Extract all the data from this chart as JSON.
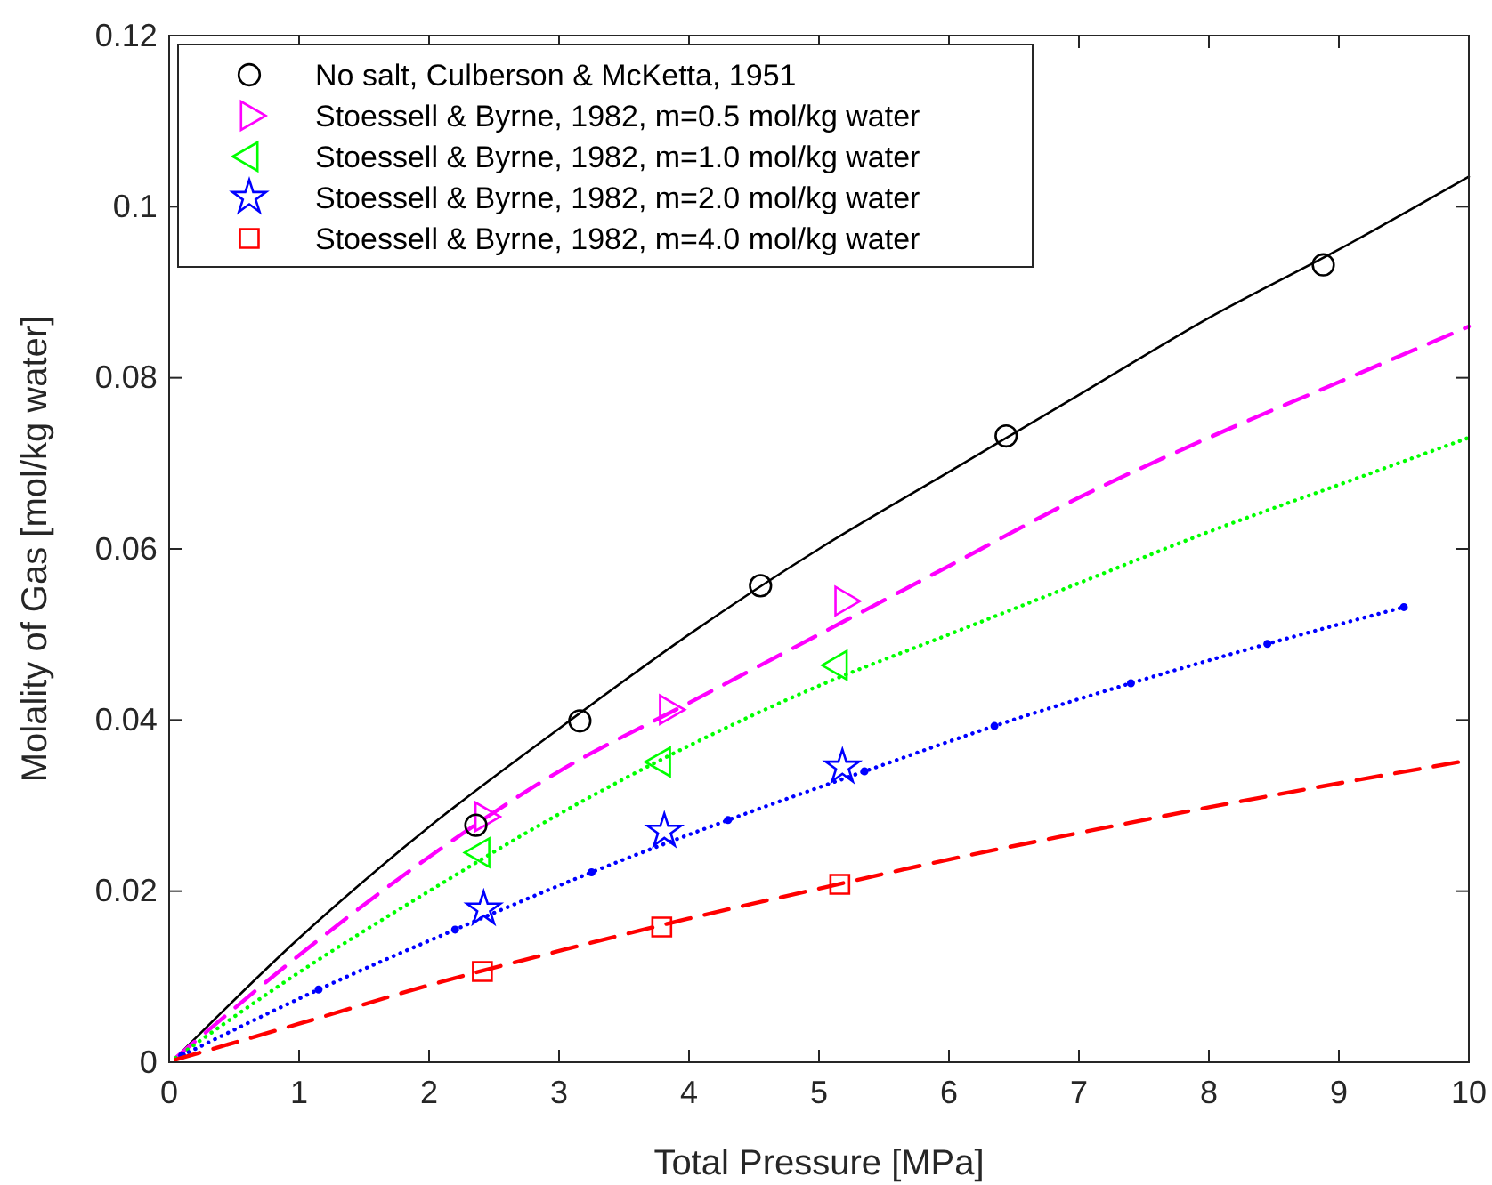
{
  "chart_data": {
    "type": "scatter",
    "xlabel": "Total Pressure [MPa]",
    "ylabel": "Molality of Gas [mol/kg water]",
    "xlim": [
      0,
      10
    ],
    "ylim": [
      0,
      0.12
    ],
    "xticks": [
      0,
      1,
      2,
      3,
      4,
      5,
      6,
      7,
      8,
      9,
      10
    ],
    "yticks": [
      0,
      0.02,
      0.04,
      0.06,
      0.08,
      0.1,
      0.12
    ],
    "grid": false,
    "legend": "top left",
    "series": [
      {
        "type": "line",
        "color": "#000000",
        "line_style": "solid",
        "marker": "none",
        "x": [
          0.05,
          1,
          2,
          3,
          4,
          5,
          6,
          7,
          8,
          9,
          10
        ],
        "values": [
          0.0005,
          0.0145,
          0.0275,
          0.039,
          0.05,
          0.06,
          0.069,
          0.078,
          0.087,
          0.095,
          0.1035
        ]
      },
      {
        "type": "line",
        "color": "#ff00ff",
        "line_style": "dashed",
        "marker": "none",
        "x": [
          0.05,
          1,
          2,
          3,
          4,
          5,
          6,
          7,
          8,
          9,
          10
        ],
        "values": [
          0.0005,
          0.0125,
          0.024,
          0.034,
          0.042,
          0.05,
          0.058,
          0.066,
          0.073,
          0.0795,
          0.086
        ]
      },
      {
        "type": "line",
        "color": "#00ff00",
        "line_style": "dotted",
        "marker": "none",
        "x": [
          0.05,
          1,
          2,
          3,
          4,
          5,
          6,
          7,
          8,
          9,
          10
        ],
        "values": [
          0.0005,
          0.0105,
          0.02,
          0.029,
          0.037,
          0.044,
          0.05,
          0.056,
          0.062,
          0.0675,
          0.073
        ]
      },
      {
        "type": "line",
        "color": "#0000ff",
        "line_style": "dotted",
        "marker": "circle",
        "x": [
          0.1,
          1.15,
          2.2,
          3.25,
          4.3,
          5.35,
          6.35,
          7.4,
          8.45,
          9.5
        ],
        "values": [
          0.0008,
          0.0085,
          0.0155,
          0.0222,
          0.0283,
          0.034,
          0.0393,
          0.0443,
          0.0489,
          0.0532
        ]
      },
      {
        "type": "line",
        "color": "#ff0000",
        "line_style": "dashed",
        "marker": "none",
        "x": [
          0.05,
          1,
          2,
          3,
          4,
          5,
          6,
          7,
          8,
          9,
          10
        ],
        "values": [
          0.0003,
          0.0045,
          0.009,
          0.013,
          0.0168,
          0.0203,
          0.0237,
          0.0268,
          0.0298,
          0.0326,
          0.0353
        ]
      },
      {
        "type": "scatter",
        "name": "No salt, Culberson & McKetta, 1951",
        "color": "#000000",
        "marker": "circle",
        "x": [
          2.36,
          3.16,
          4.55,
          6.44,
          8.88
        ],
        "values": [
          0.0277,
          0.0399,
          0.0557,
          0.0732,
          0.0932
        ]
      },
      {
        "type": "scatter",
        "name": "Stoessell & Byrne, 1982, m=0.5 mol/kg water",
        "color": "#ff00ff",
        "marker": "triangle-right",
        "x": [
          2.42,
          3.84,
          5.19
        ],
        "values": [
          0.0287,
          0.0412,
          0.0539
        ]
      },
      {
        "type": "scatter",
        "name": "Stoessell & Byrne, 1982, m=1.0 mol/kg water",
        "color": "#00ff00",
        "marker": "triangle-left",
        "x": [
          2.4,
          3.79,
          5.15
        ],
        "values": [
          0.0245,
          0.0351,
          0.0464
        ]
      },
      {
        "type": "scatter",
        "name": "Stoessell & Byrne, 1982, m=2.0 mol/kg water",
        "color": "#0000ff",
        "marker": "star",
        "x": [
          2.42,
          3.81,
          5.18
        ],
        "values": [
          0.0179,
          0.027,
          0.0345
        ]
      },
      {
        "type": "scatter",
        "name": "Stoessell & Byrne, 1982, m=4.0 mol/kg water",
        "color": "#ff0000",
        "marker": "square",
        "x": [
          2.41,
          3.79,
          5.16
        ],
        "values": [
          0.0106,
          0.0158,
          0.0208
        ]
      }
    ]
  }
}
